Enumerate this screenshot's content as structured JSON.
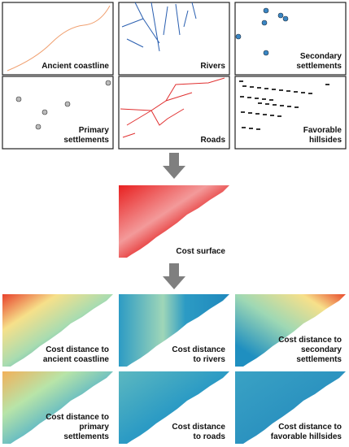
{
  "inputs": [
    {
      "lines": [
        "Ancient coastline"
      ]
    },
    {
      "lines": [
        "Rivers"
      ]
    },
    {
      "lines": [
        "Secondary",
        "settlements"
      ]
    },
    {
      "lines": [
        "Primary",
        "settlements"
      ]
    },
    {
      "lines": [
        "Roads"
      ]
    },
    {
      "lines": [
        "Favorable",
        "hillsides"
      ]
    }
  ],
  "cost_surface": {
    "label": "Cost surface"
  },
  "outputs": [
    {
      "lines": [
        "Cost distance to",
        "ancient coastline"
      ]
    },
    {
      "lines": [
        "Cost distance",
        "to rivers"
      ]
    },
    {
      "lines": [
        "Cost distance to",
        "secondary",
        "settlements"
      ]
    },
    {
      "lines": [
        "Cost distance to",
        "primary",
        "settlements"
      ]
    },
    {
      "lines": [
        "Cost distance",
        "to roads"
      ]
    },
    {
      "lines": [
        "Cost distance to",
        "favorable hillsides"
      ]
    }
  ]
}
